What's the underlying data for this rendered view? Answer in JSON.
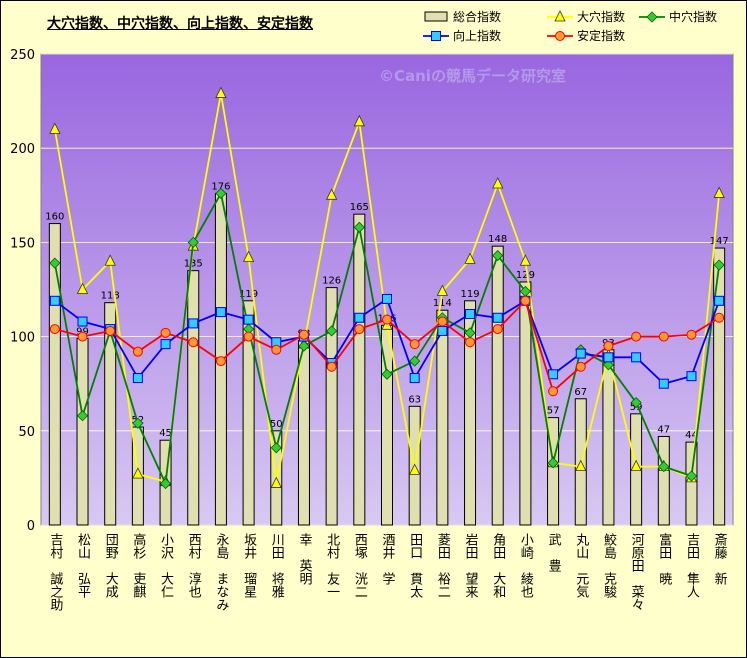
{
  "chart_data": {
    "type": "bar+line",
    "title": "大穴指数、中穴指数、向上指数、安定指数",
    "watermark": "©Caniの競馬データ研究室",
    "ylim": [
      0,
      250
    ],
    "yticks": [
      0,
      50,
      100,
      150,
      200,
      250
    ],
    "grid": true,
    "legend_position": "top-right",
    "categories": [
      "吉村　誠之助",
      "松山　弘平",
      "団野　大成",
      "高杉　吏麒",
      "小沢　大仁",
      "西村　淳也",
      "永島　まなみ",
      "坂井　瑠星",
      "川田　将雅",
      "幸　英明",
      "北村　友一",
      "西塚　洸二",
      "酒井　学",
      "田口　貫太",
      "菱田　裕二",
      "岩田　望来",
      "角田　大和",
      "小崎　綾也",
      "武　豊",
      "丸山　元気",
      "鮫島　克駿",
      "河原田　菜々",
      "富田　暁",
      "吉田　隼人",
      "斎藤　新"
    ],
    "series": [
      {
        "name": "総合指数",
        "type": "bar",
        "color": "#E0DFB0",
        "labels_shown": true,
        "values": [
          160,
          99,
          118,
          52,
          45,
          135,
          176,
          119,
          50,
          98,
          126,
          165,
          106,
          63,
          114,
          119,
          148,
          129,
          57,
          67,
          93,
          59,
          47,
          44,
          147
        ]
      },
      {
        "name": "大穴指数",
        "type": "line",
        "color": "#FFFF00",
        "marker": "triangle",
        "values": [
          210,
          125,
          140,
          27,
          23,
          148,
          229,
          142,
          22,
          96,
          175,
          214,
          106,
          29,
          124,
          141,
          181,
          140,
          33,
          31,
          90,
          31,
          31,
          25,
          176
        ]
      },
      {
        "name": "中穴指数",
        "type": "line",
        "color": "#008000",
        "marker": "diamond",
        "values": [
          139,
          58,
          103,
          54,
          22,
          150,
          176,
          104,
          41,
          95,
          103,
          158,
          80,
          87,
          110,
          102,
          143,
          124,
          33,
          93,
          85,
          65,
          31,
          26,
          138
        ]
      },
      {
        "name": "向上指数",
        "type": "line",
        "color": "#0000FF",
        "marker": "square",
        "values": [
          119,
          108,
          104,
          78,
          96,
          107,
          113,
          109,
          97,
          100,
          86,
          110,
          120,
          78,
          103,
          112,
          110,
          119,
          80,
          91,
          89,
          89,
          75,
          79,
          119
        ]
      },
      {
        "name": "安定指数",
        "type": "line",
        "color": "#FF0000",
        "marker": "circle",
        "values": [
          104,
          100,
          103,
          92,
          102,
          97,
          87,
          100,
          93,
          101,
          84,
          104,
          109,
          96,
          108,
          97,
          104,
          119,
          71,
          84,
          95,
          100,
          100,
          101,
          110
        ]
      }
    ]
  }
}
